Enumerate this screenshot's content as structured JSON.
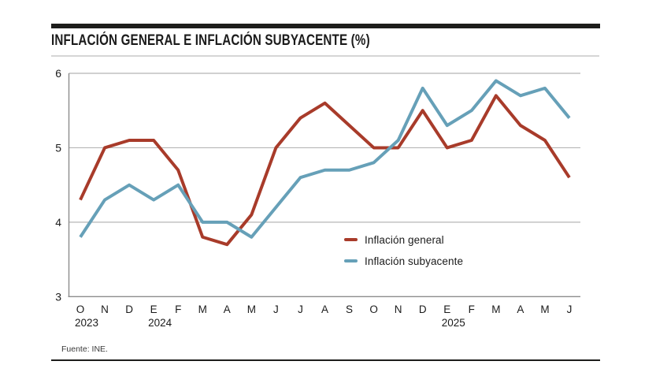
{
  "header": {
    "title": "INFLACIÓN GENERAL E INFLACIÓN SUBYACENTE (%)"
  },
  "chart_data": {
    "type": "line",
    "x_labels": [
      "O",
      "N",
      "D",
      "E",
      "F",
      "M",
      "A",
      "M",
      "J",
      "J",
      "A",
      "S",
      "O",
      "N",
      "D",
      "E",
      "F",
      "M",
      "A",
      "M",
      "J"
    ],
    "year_labels": [
      {
        "text": "2023",
        "index": 0
      },
      {
        "text": "2024",
        "index": 3
      },
      {
        "text": "2025",
        "index": 15
      }
    ],
    "ylim": [
      3,
      6
    ],
    "yticks": [
      3,
      4,
      5,
      6
    ],
    "grid": true,
    "legend_position": "inside-right",
    "series": [
      {
        "name": "Inflación general",
        "color": "#a83b2a",
        "values": [
          4.3,
          5.0,
          5.1,
          5.1,
          4.7,
          3.8,
          3.7,
          4.1,
          5.0,
          5.4,
          5.6,
          5.3,
          5.0,
          5.0,
          5.5,
          5.0,
          5.1,
          5.7,
          5.3,
          5.1,
          4.6
        ]
      },
      {
        "name": "Inflación subyacente",
        "color": "#66a0b8",
        "values": [
          3.8,
          4.3,
          4.5,
          4.3,
          4.5,
          4.0,
          4.0,
          3.8,
          4.2,
          4.6,
          4.7,
          4.7,
          4.8,
          5.1,
          5.8,
          5.3,
          5.5,
          5.9,
          5.7,
          5.8,
          5.4
        ]
      }
    ],
    "colors": {
      "gridline": "#b5b5b5",
      "axis": "#8c8c8c",
      "tick_text": "#1b1b1b"
    }
  },
  "footer": {
    "source": "Fuente: INE."
  }
}
